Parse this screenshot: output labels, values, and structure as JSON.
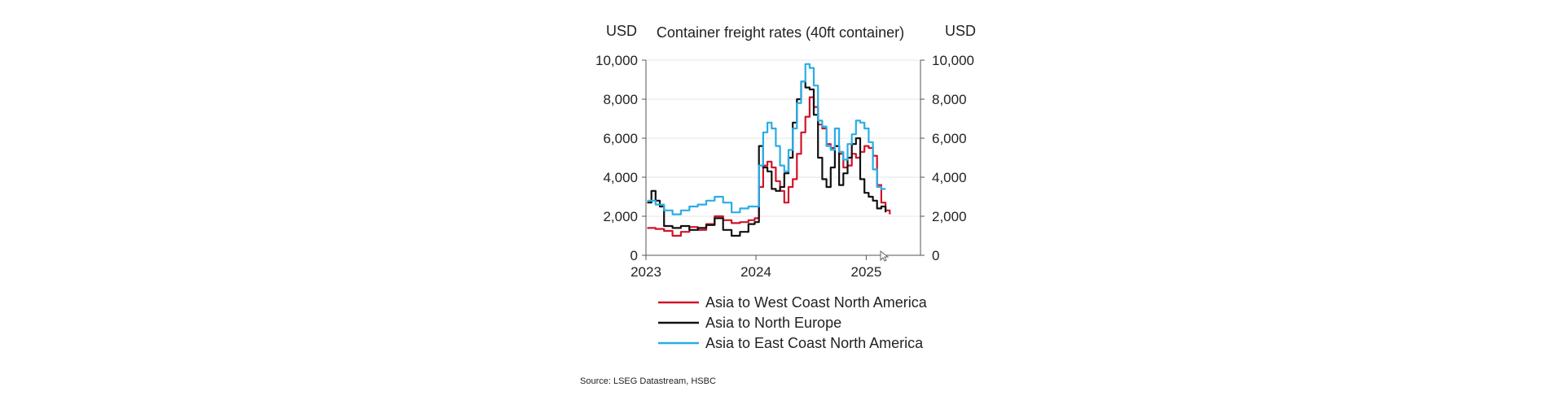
{
  "chart_data": {
    "type": "line",
    "title": "Container freight rates (40ft container)",
    "y_unit_left": "USD",
    "y_unit_right": "USD",
    "ylim": [
      0,
      10000
    ],
    "y_ticks": [
      0,
      2000,
      4000,
      6000,
      8000,
      10000
    ],
    "y_tick_labels": [
      "0",
      "2,000",
      "4,000",
      "6,000",
      "8,000",
      "10,000"
    ],
    "x_range": [
      "2023-01-01",
      "2025-06-30"
    ],
    "x_ticks": [
      "2023-01-01",
      "2024-01-01",
      "2025-01-01"
    ],
    "x_tick_labels": [
      "2023",
      "2024",
      "2025"
    ],
    "grid": true,
    "legend_position": "bottom",
    "series": [
      {
        "name": "Asia to West Coast North America",
        "color": "#d0142a",
        "points": [
          [
            "2023-01-05",
            1400
          ],
          [
            "2023-02-02",
            1350
          ],
          [
            "2023-03-02",
            1250
          ],
          [
            "2023-03-30",
            1000
          ],
          [
            "2023-04-27",
            1200
          ],
          [
            "2023-05-25",
            1450
          ],
          [
            "2023-06-22",
            1300
          ],
          [
            "2023-07-20",
            1600
          ],
          [
            "2023-08-17",
            2000
          ],
          [
            "2023-09-14",
            1800
          ],
          [
            "2023-10-12",
            1650
          ],
          [
            "2023-11-09",
            1700
          ],
          [
            "2023-12-07",
            1800
          ],
          [
            "2023-12-28",
            1900
          ],
          [
            "2024-01-11",
            3500
          ],
          [
            "2024-01-25",
            4600
          ],
          [
            "2024-02-08",
            4800
          ],
          [
            "2024-02-22",
            4500
          ],
          [
            "2024-03-07",
            3800
          ],
          [
            "2024-03-21",
            3300
          ],
          [
            "2024-04-04",
            2700
          ],
          [
            "2024-04-18",
            3500
          ],
          [
            "2024-05-02",
            3900
          ],
          [
            "2024-05-16",
            5200
          ],
          [
            "2024-05-30",
            6300
          ],
          [
            "2024-06-13",
            7100
          ],
          [
            "2024-06-27",
            8100
          ],
          [
            "2024-07-11",
            7600
          ],
          [
            "2024-07-25",
            6700
          ],
          [
            "2024-08-08",
            6500
          ],
          [
            "2024-08-22",
            5700
          ],
          [
            "2024-09-05",
            5500
          ],
          [
            "2024-09-19",
            5600
          ],
          [
            "2024-10-03",
            5200
          ],
          [
            "2024-10-17",
            4500
          ],
          [
            "2024-10-31",
            4600
          ],
          [
            "2024-11-14",
            5200
          ],
          [
            "2024-11-28",
            5000
          ],
          [
            "2024-12-12",
            5300
          ],
          [
            "2024-12-26",
            5600
          ],
          [
            "2025-01-09",
            5500
          ],
          [
            "2025-01-23",
            5100
          ],
          [
            "2025-02-06",
            3600
          ],
          [
            "2025-02-20",
            2700
          ],
          [
            "2025-03-06",
            2300
          ],
          [
            "2025-03-20",
            2100
          ]
        ]
      },
      {
        "name": "Asia to North Europe",
        "color": "#111111",
        "points": [
          [
            "2023-01-05",
            2700
          ],
          [
            "2023-01-19",
            3300
          ],
          [
            "2023-02-02",
            2800
          ],
          [
            "2023-02-16",
            2500
          ],
          [
            "2023-03-02",
            1500
          ],
          [
            "2023-03-30",
            1400
          ],
          [
            "2023-04-27",
            1500
          ],
          [
            "2023-05-25",
            1300
          ],
          [
            "2023-06-22",
            1400
          ],
          [
            "2023-07-20",
            1550
          ],
          [
            "2023-08-17",
            1900
          ],
          [
            "2023-09-14",
            1300
          ],
          [
            "2023-10-12",
            1000
          ],
          [
            "2023-11-09",
            1200
          ],
          [
            "2023-12-07",
            1600
          ],
          [
            "2023-12-28",
            1700
          ],
          [
            "2024-01-11",
            5600
          ],
          [
            "2024-01-25",
            4500
          ],
          [
            "2024-02-08",
            4300
          ],
          [
            "2024-02-22",
            3400
          ],
          [
            "2024-03-07",
            3300
          ],
          [
            "2024-03-21",
            3500
          ],
          [
            "2024-04-04",
            4200
          ],
          [
            "2024-04-18",
            5000
          ],
          [
            "2024-05-02",
            6800
          ],
          [
            "2024-05-16",
            8000
          ],
          [
            "2024-05-30",
            8900
          ],
          [
            "2024-06-13",
            8600
          ],
          [
            "2024-06-27",
            8500
          ],
          [
            "2024-07-11",
            7200
          ],
          [
            "2024-07-25",
            5000
          ],
          [
            "2024-08-08",
            3900
          ],
          [
            "2024-08-22",
            3500
          ],
          [
            "2024-09-05",
            4500
          ],
          [
            "2024-09-19",
            5600
          ],
          [
            "2024-10-03",
            3600
          ],
          [
            "2024-10-17",
            4200
          ],
          [
            "2024-10-31",
            5000
          ],
          [
            "2024-11-14",
            5700
          ],
          [
            "2024-11-28",
            6000
          ],
          [
            "2024-12-12",
            3900
          ],
          [
            "2024-12-26",
            3200
          ],
          [
            "2025-01-09",
            3000
          ],
          [
            "2025-01-23",
            2800
          ],
          [
            "2025-02-06",
            2400
          ],
          [
            "2025-02-20",
            2500
          ],
          [
            "2025-03-06",
            2200
          ]
        ]
      },
      {
        "name": "Asia to East Coast North America",
        "color": "#29aee6",
        "points": [
          [
            "2023-01-05",
            2800
          ],
          [
            "2023-02-02",
            2600
          ],
          [
            "2023-03-02",
            2300
          ],
          [
            "2023-03-30",
            2100
          ],
          [
            "2023-04-27",
            2300
          ],
          [
            "2023-05-25",
            2500
          ],
          [
            "2023-06-22",
            2600
          ],
          [
            "2023-07-20",
            2800
          ],
          [
            "2023-08-17",
            3000
          ],
          [
            "2023-09-14",
            2700
          ],
          [
            "2023-10-12",
            2200
          ],
          [
            "2023-11-09",
            2400
          ],
          [
            "2023-12-07",
            2500
          ],
          [
            "2023-12-28",
            2500
          ],
          [
            "2024-01-11",
            4600
          ],
          [
            "2024-01-25",
            6300
          ],
          [
            "2024-02-08",
            6800
          ],
          [
            "2024-02-22",
            6500
          ],
          [
            "2024-03-07",
            5600
          ],
          [
            "2024-03-21",
            4600
          ],
          [
            "2024-04-04",
            4300
          ],
          [
            "2024-04-18",
            5400
          ],
          [
            "2024-05-02",
            6500
          ],
          [
            "2024-05-16",
            7800
          ],
          [
            "2024-05-30",
            8900
          ],
          [
            "2024-06-13",
            9800
          ],
          [
            "2024-06-27",
            9600
          ],
          [
            "2024-07-11",
            8700
          ],
          [
            "2024-07-25",
            6900
          ],
          [
            "2024-08-08",
            6600
          ],
          [
            "2024-08-22",
            5600
          ],
          [
            "2024-09-05",
            5400
          ],
          [
            "2024-09-19",
            6500
          ],
          [
            "2024-10-03",
            5300
          ],
          [
            "2024-10-17",
            4900
          ],
          [
            "2024-10-31",
            5700
          ],
          [
            "2024-11-14",
            6200
          ],
          [
            "2024-11-28",
            6900
          ],
          [
            "2024-12-12",
            6800
          ],
          [
            "2024-12-26",
            6500
          ],
          [
            "2025-01-09",
            5800
          ],
          [
            "2025-01-23",
            4400
          ],
          [
            "2025-02-06",
            3500
          ],
          [
            "2025-02-20",
            3400
          ],
          [
            "2025-03-06",
            3400
          ]
        ]
      }
    ],
    "source": "Source: LSEG Datastream, HSBC"
  }
}
